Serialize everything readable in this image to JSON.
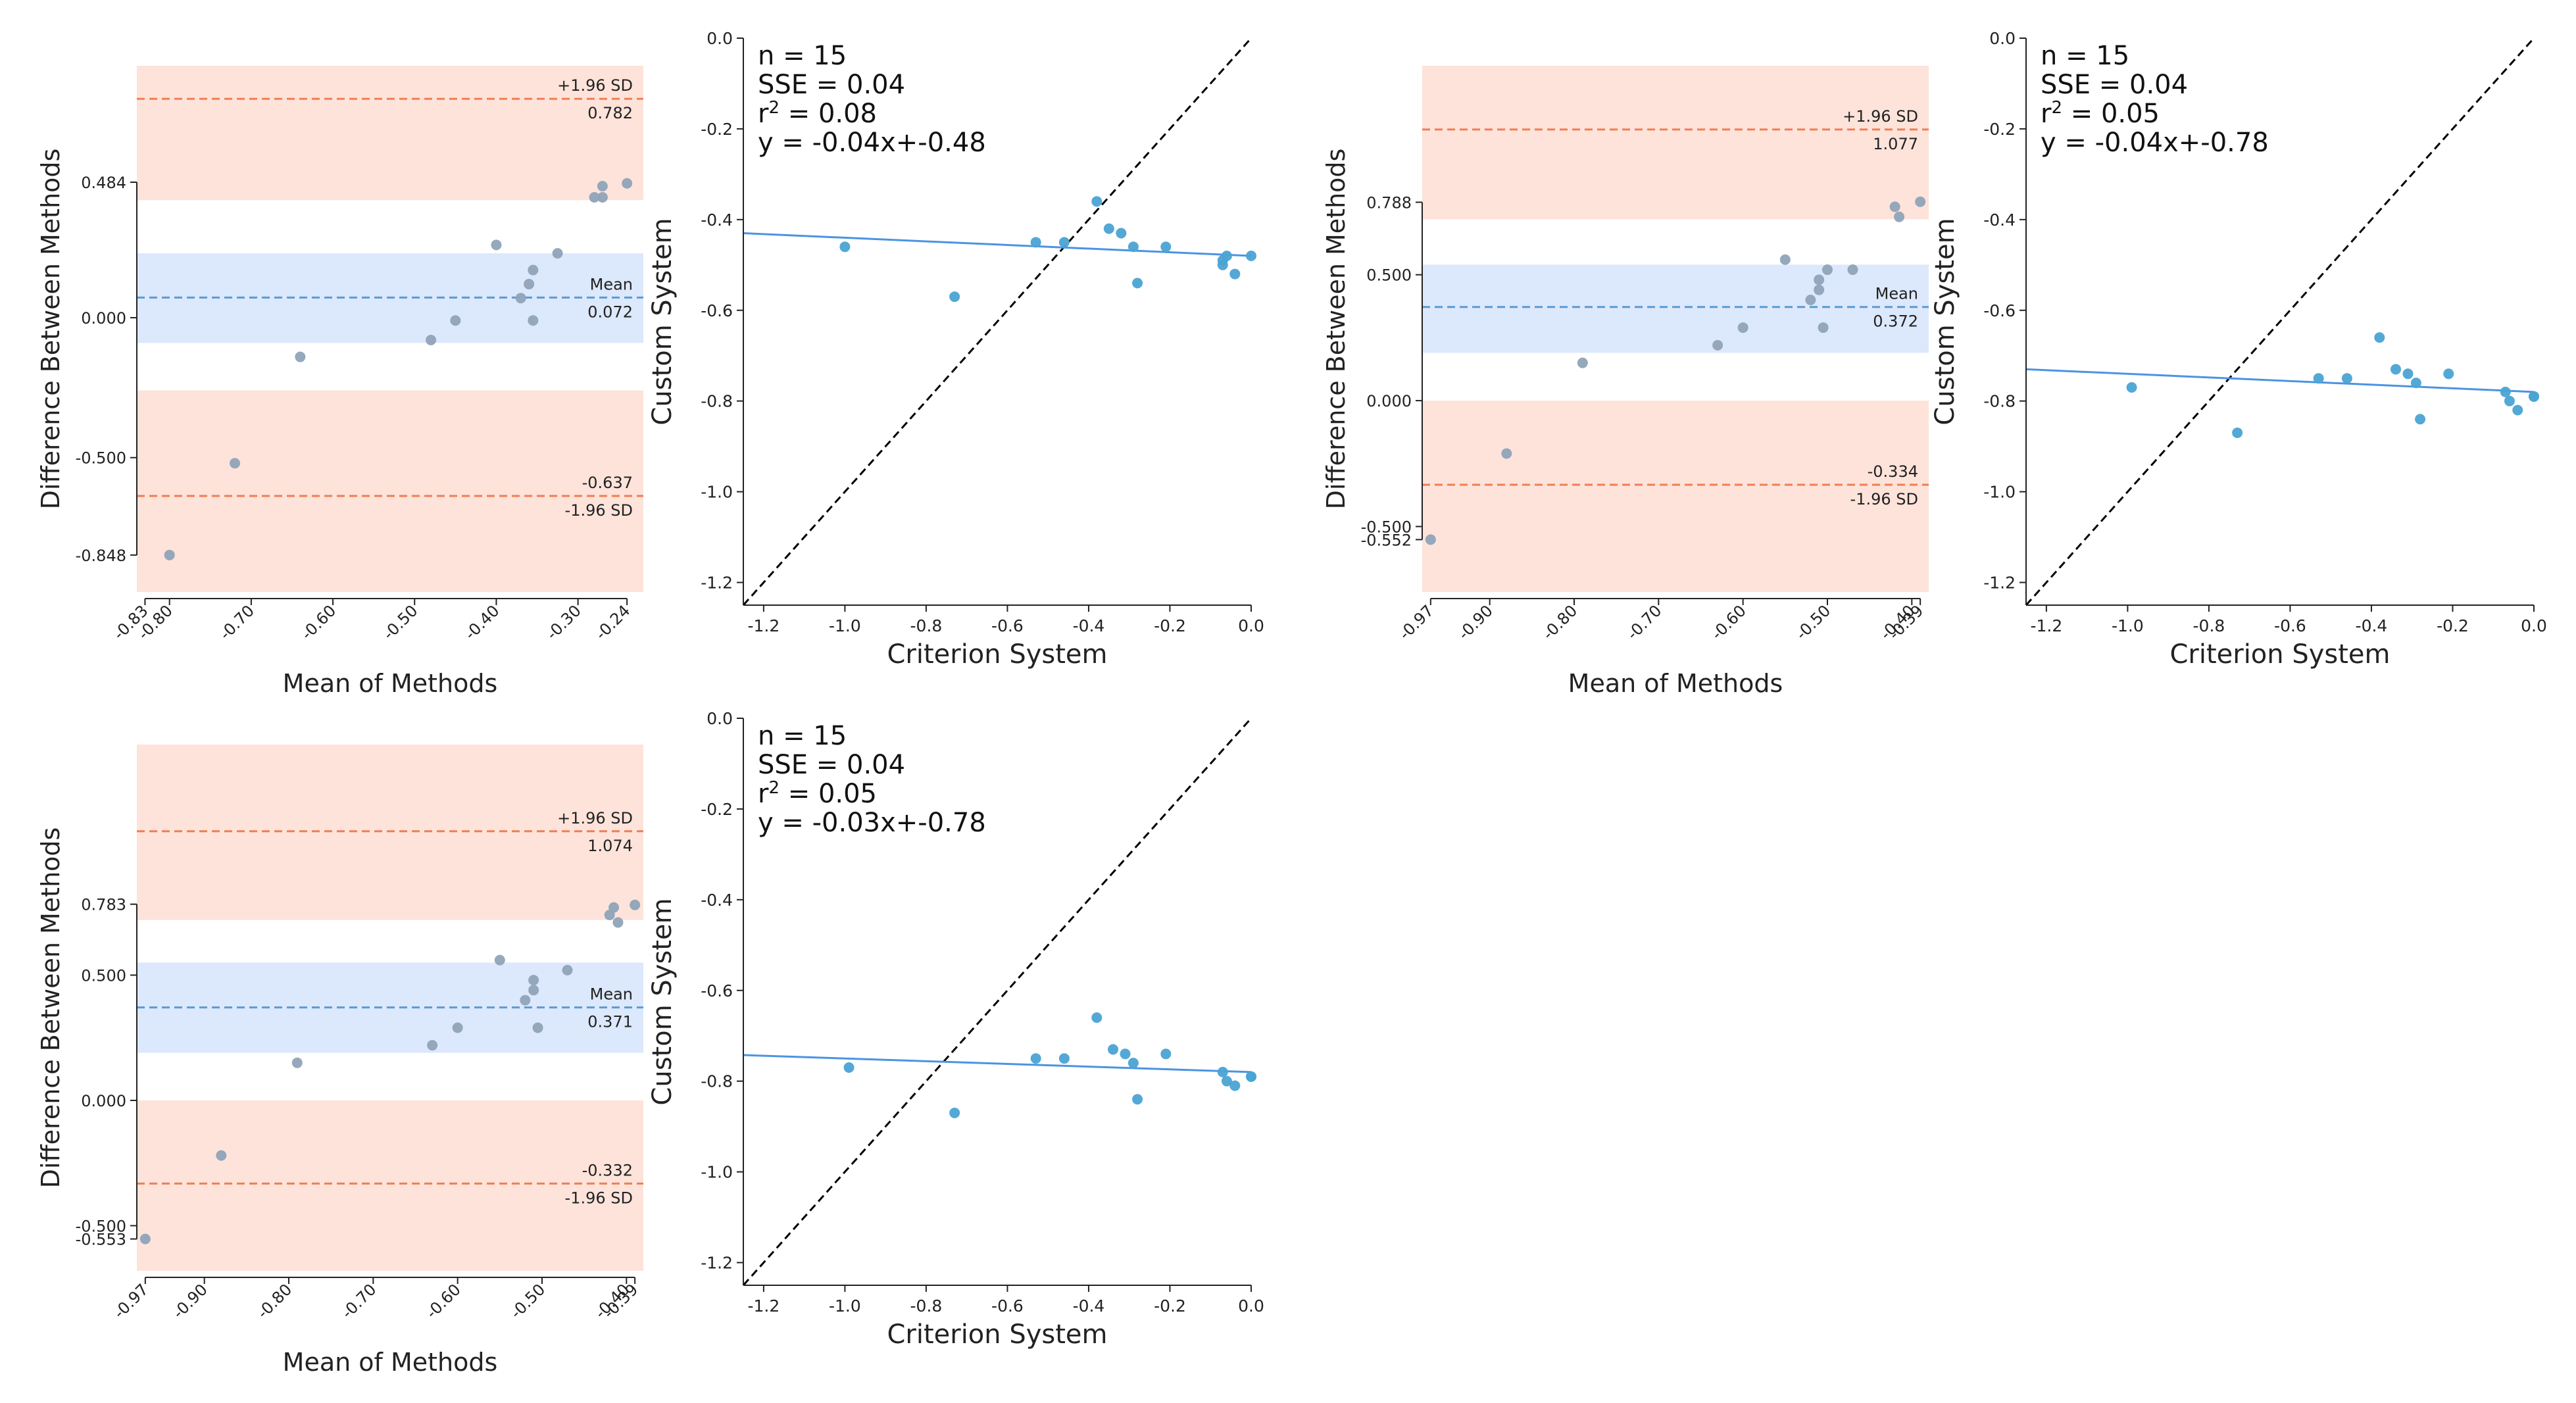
{
  "colors": {
    "loa_band": "#fde3da",
    "mean_band": "#dce8fb",
    "loa_line": "#f07e52",
    "mean_line": "#5a9bd5",
    "point_ba": "#8fa3b8",
    "point_reg": "#4aa3d4",
    "reg_line": "#4a94e3",
    "identity_line": "#000000",
    "axis": "#222222"
  },
  "labels": {
    "upper_tag": "+1.96 SD",
    "lower_tag": "-1.96 SD",
    "mean_tag": "Mean"
  },
  "chart_data": [
    {
      "id": "ba1",
      "type": "scatter",
      "kind": "bland-altman",
      "xlabel": "Mean of Methods",
      "ylabel": "Difference Between Methods",
      "xlim": [
        -0.84,
        -0.22
      ],
      "ylim": [
        -0.98,
        0.9
      ],
      "xticks": [
        "-0.83",
        "-0.80",
        "-0.70",
        "-0.60",
        "-0.50",
        "-0.40",
        "-0.30",
        "-0.24"
      ],
      "xtick_values": [
        -0.83,
        -0.8,
        -0.7,
        -0.6,
        -0.5,
        -0.4,
        -0.3,
        -0.24
      ],
      "yticks": [
        "-0.848",
        "-0.500",
        "0.000",
        "0.484"
      ],
      "ytick_values": [
        -0.848,
        -0.5,
        0.0,
        0.484
      ],
      "mean": 0.072,
      "mean_label": "0.072",
      "upper_loa": 0.782,
      "upper_label": "0.782",
      "lower_loa": -0.637,
      "lower_label": "-0.637",
      "upper_band": [
        0.42,
        0.9
      ],
      "mean_band": [
        -0.09,
        0.23
      ],
      "lower_band": [
        -0.98,
        -0.26
      ],
      "points": {
        "x": [
          -0.8,
          -0.72,
          -0.64,
          -0.48,
          -0.45,
          -0.4,
          -0.37,
          -0.36,
          -0.355,
          -0.355,
          -0.325,
          -0.28,
          -0.27,
          -0.27,
          -0.24
        ],
        "y": [
          -0.848,
          -0.52,
          -0.14,
          -0.08,
          -0.01,
          0.26,
          0.07,
          0.12,
          0.17,
          -0.01,
          0.23,
          0.43,
          0.43,
          0.47,
          0.48
        ]
      }
    },
    {
      "id": "reg1",
      "type": "scatter",
      "kind": "regression",
      "xlabel": "Criterion System",
      "ylabel": "Custom System",
      "xlim": [
        -1.25,
        0.0
      ],
      "ylim": [
        -1.25,
        0.0
      ],
      "xticks": [
        "-1.2",
        "-1.0",
        "-0.8",
        "-0.6",
        "-0.4",
        "-0.2",
        "0.0"
      ],
      "xtick_values": [
        -1.2,
        -1.0,
        -0.8,
        -0.6,
        -0.4,
        -0.2,
        0.0
      ],
      "yticks": [
        "0.0",
        "-0.2",
        "-0.4",
        "-0.6",
        "-0.8",
        "-1.0",
        "-1.2"
      ],
      "ytick_values": [
        0.0,
        -0.2,
        -0.4,
        -0.6,
        -0.8,
        -1.0,
        -1.2
      ],
      "stats": [
        "n = 15",
        "SSE = 0.04",
        "= 0.08",
        "y = -0.04x+-0.48"
      ],
      "slope": -0.04,
      "intercept": -0.48,
      "points": {
        "x": [
          -1.0,
          -0.73,
          -0.53,
          -0.46,
          -0.38,
          -0.35,
          -0.32,
          -0.29,
          -0.28,
          -0.21,
          -0.07,
          -0.07,
          -0.06,
          -0.04,
          0.0
        ],
        "y": [
          -0.46,
          -0.57,
          -0.45,
          -0.45,
          -0.36,
          -0.42,
          -0.43,
          -0.46,
          -0.54,
          -0.46,
          -0.5,
          -0.49,
          -0.48,
          -0.52,
          -0.48
        ]
      }
    },
    {
      "id": "ba2",
      "type": "scatter",
      "kind": "bland-altman",
      "xlabel": "Mean of Methods",
      "ylabel": "Difference Between Methods",
      "xlim": [
        -0.98,
        -0.38
      ],
      "ylim": [
        -0.76,
        1.33
      ],
      "xticks": [
        "-0.97",
        "-0.90",
        "-0.80",
        "-0.70",
        "-0.60",
        "-0.50",
        "-0.40",
        "-0.39"
      ],
      "xtick_values": [
        -0.97,
        -0.9,
        -0.8,
        -0.7,
        -0.6,
        -0.5,
        -0.4,
        -0.39
      ],
      "yticks": [
        "-0.552",
        "-0.500",
        "0.000",
        "0.500",
        "0.788"
      ],
      "ytick_values": [
        -0.552,
        -0.5,
        0.0,
        0.5,
        0.788
      ],
      "mean": 0.372,
      "mean_label": "0.372",
      "upper_loa": 1.077,
      "upper_label": "1.077",
      "lower_loa": -0.334,
      "lower_label": "-0.334",
      "upper_band": [
        0.72,
        1.33
      ],
      "mean_band": [
        0.19,
        0.54
      ],
      "lower_band": [
        -0.76,
        0.0
      ],
      "points": {
        "x": [
          -0.97,
          -0.88,
          -0.79,
          -0.63,
          -0.6,
          -0.55,
          -0.52,
          -0.51,
          -0.51,
          -0.505,
          -0.5,
          -0.47,
          -0.42,
          -0.415,
          -0.39
        ],
        "y": [
          -0.552,
          -0.21,
          0.15,
          0.22,
          0.29,
          0.56,
          0.4,
          0.44,
          0.48,
          0.29,
          0.52,
          0.52,
          0.77,
          0.73,
          0.79
        ]
      }
    },
    {
      "id": "reg2",
      "type": "scatter",
      "kind": "regression",
      "xlabel": "Criterion System",
      "ylabel": "Custom System",
      "xlim": [
        -1.25,
        0.0
      ],
      "ylim": [
        -1.25,
        0.0
      ],
      "xticks": [
        "-1.2",
        "-1.0",
        "-0.8",
        "-0.6",
        "-0.4",
        "-0.2",
        "0.0"
      ],
      "xtick_values": [
        -1.2,
        -1.0,
        -0.8,
        -0.6,
        -0.4,
        -0.2,
        0.0
      ],
      "yticks": [
        "0.0",
        "-0.2",
        "-0.4",
        "-0.6",
        "-0.8",
        "-1.0",
        "-1.2"
      ],
      "ytick_values": [
        0.0,
        -0.2,
        -0.4,
        -0.6,
        -0.8,
        -1.0,
        -1.2
      ],
      "stats": [
        "n = 15",
        "SSE = 0.04",
        "= 0.05",
        "y = -0.04x+-0.78"
      ],
      "slope": -0.04,
      "intercept": -0.78,
      "points": {
        "x": [
          -0.99,
          -0.73,
          -0.53,
          -0.46,
          -0.38,
          -0.34,
          -0.31,
          -0.29,
          -0.28,
          -0.21,
          -0.07,
          -0.06,
          -0.04,
          0.0,
          0.0
        ],
        "y": [
          -0.77,
          -0.87,
          -0.75,
          -0.75,
          -0.66,
          -0.73,
          -0.74,
          -0.76,
          -0.84,
          -0.74,
          -0.78,
          -0.8,
          -0.82,
          -0.79,
          -0.79
        ]
      }
    },
    {
      "id": "ba3",
      "type": "scatter",
      "kind": "bland-altman",
      "xlabel": "Mean of Methods",
      "ylabel": "Difference Between Methods",
      "xlim": [
        -0.98,
        -0.38
      ],
      "ylim": [
        -0.68,
        1.42
      ],
      "xticks": [
        "-0.97",
        "-0.90",
        "-0.80",
        "-0.70",
        "-0.60",
        "-0.50",
        "-0.40",
        "-0.39"
      ],
      "xtick_values": [
        -0.97,
        -0.9,
        -0.8,
        -0.7,
        -0.6,
        -0.5,
        -0.4,
        -0.39
      ],
      "yticks": [
        "-0.553",
        "-0.500",
        "0.000",
        "0.500",
        "0.783"
      ],
      "ytick_values": [
        -0.553,
        -0.5,
        0.0,
        0.5,
        0.783
      ],
      "mean": 0.371,
      "mean_label": "0.371",
      "upper_loa": 1.074,
      "upper_label": "1.074",
      "lower_loa": -0.332,
      "lower_label": "-0.332",
      "upper_band": [
        0.72,
        1.42
      ],
      "mean_band": [
        0.19,
        0.55
      ],
      "lower_band": [
        -0.68,
        0.0
      ],
      "points": {
        "x": [
          -0.97,
          -0.88,
          -0.79,
          -0.63,
          -0.6,
          -0.55,
          -0.52,
          -0.51,
          -0.51,
          -0.505,
          -0.47,
          -0.42,
          -0.415,
          -0.41,
          -0.39
        ],
        "y": [
          -0.553,
          -0.22,
          0.15,
          0.22,
          0.29,
          0.56,
          0.4,
          0.44,
          0.48,
          0.29,
          0.52,
          0.74,
          0.77,
          0.71,
          0.78
        ]
      }
    },
    {
      "id": "reg3",
      "type": "scatter",
      "kind": "regression",
      "xlabel": "Criterion System",
      "ylabel": "Custom System",
      "xlim": [
        -1.25,
        0.0
      ],
      "ylim": [
        -1.25,
        0.0
      ],
      "xticks": [
        "-1.2",
        "-1.0",
        "-0.8",
        "-0.6",
        "-0.4",
        "-0.2",
        "0.0"
      ],
      "xtick_values": [
        -1.2,
        -1.0,
        -0.8,
        -0.6,
        -0.4,
        -0.2,
        0.0
      ],
      "yticks": [
        "0.0",
        "-0.2",
        "-0.4",
        "-0.6",
        "-0.8",
        "-1.0",
        "-1.2"
      ],
      "ytick_values": [
        0.0,
        -0.2,
        -0.4,
        -0.6,
        -0.8,
        -1.0,
        -1.2
      ],
      "stats": [
        "n = 15",
        "SSE = 0.04",
        "= 0.05",
        "y = -0.03x+-0.78"
      ],
      "slope": -0.03,
      "intercept": -0.78,
      "points": {
        "x": [
          -0.99,
          -0.73,
          -0.53,
          -0.46,
          -0.38,
          -0.34,
          -0.31,
          -0.29,
          -0.28,
          -0.21,
          -0.07,
          -0.06,
          -0.04,
          0.0,
          0.0
        ],
        "y": [
          -0.77,
          -0.87,
          -0.75,
          -0.75,
          -0.66,
          -0.73,
          -0.74,
          -0.76,
          -0.84,
          -0.74,
          -0.78,
          -0.8,
          -0.81,
          -0.79,
          -0.79
        ]
      }
    }
  ]
}
